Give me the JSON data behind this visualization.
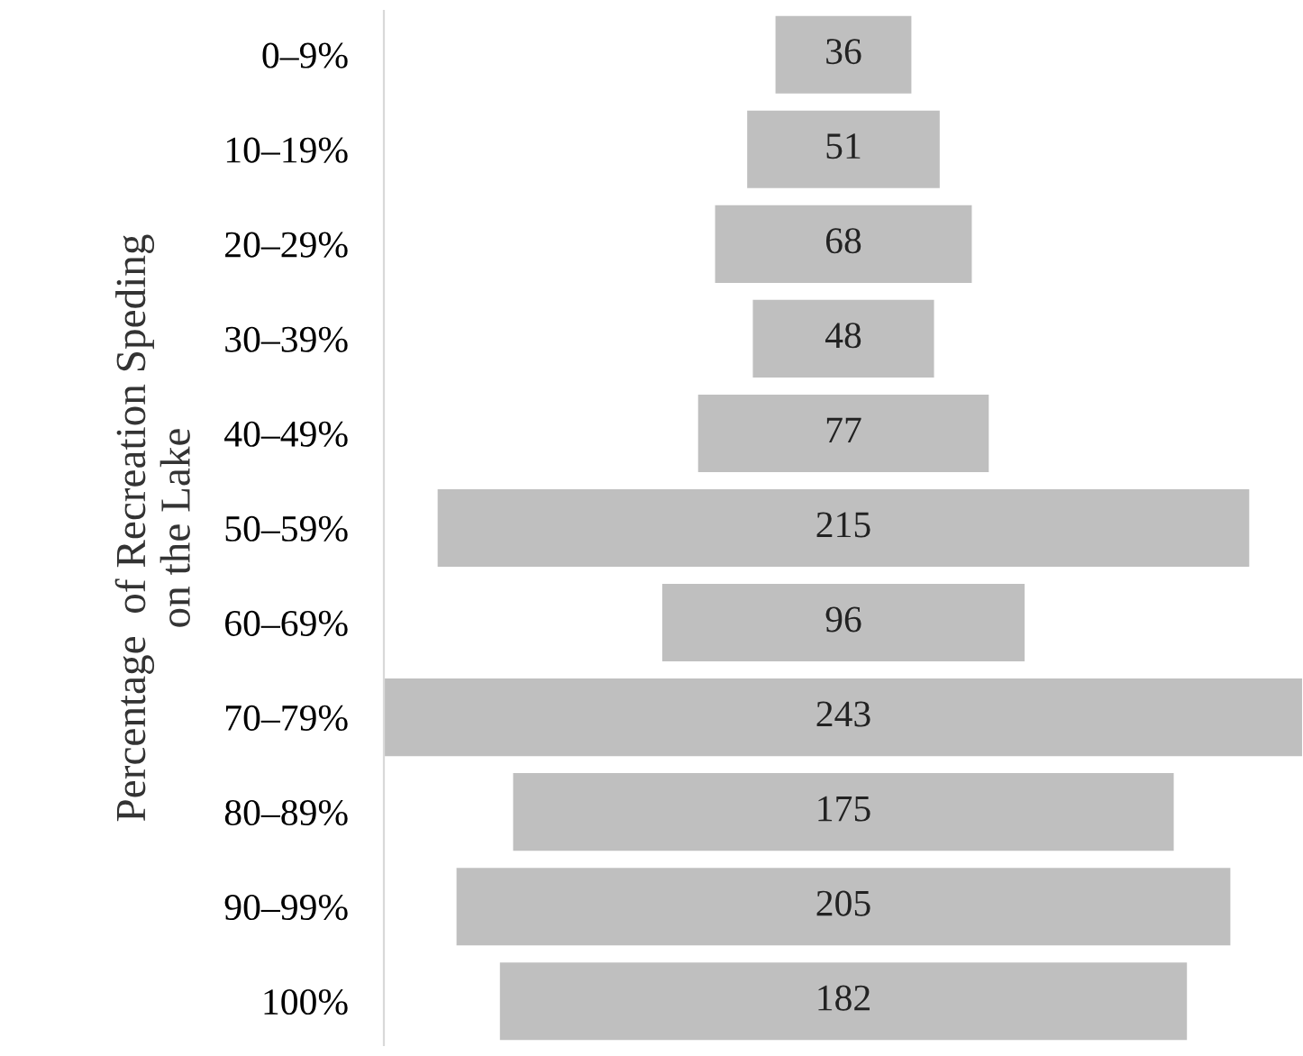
{
  "chart_data": {
    "type": "other",
    "ylabel": "Percentage  of Recreation Speding\non the Lake",
    "categories": [
      "0–9%",
      "10–19%",
      "20–29%",
      "30–39%",
      "40–49%",
      "50–59%",
      "60–69%",
      "70–79%",
      "80–89%",
      "90–99%",
      "100%"
    ],
    "values": [
      36,
      51,
      68,
      48,
      77,
      215,
      96,
      243,
      175,
      205,
      182
    ],
    "color": "#bfbfbf",
    "data_labels": true
  }
}
